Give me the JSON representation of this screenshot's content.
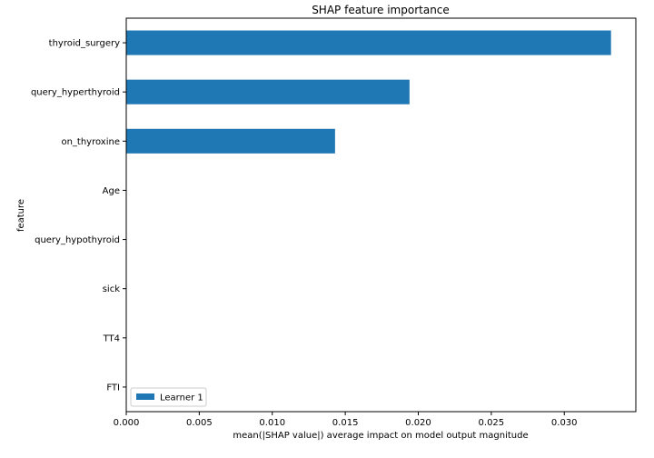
{
  "chart_data": {
    "type": "bar",
    "orientation": "horizontal",
    "title": "SHAP feature importance",
    "xlabel": "mean(|SHAP value|) average impact on model output magnitude",
    "ylabel": "feature",
    "categories": [
      "thyroid_surgery",
      "query_hyperthyroid",
      "on_thyroxine",
      "Age",
      "query_hypothyroid",
      "sick",
      "TT4",
      "FTI"
    ],
    "series": [
      {
        "name": "Learner 1",
        "values": [
          0.0332,
          0.0194,
          0.0143,
          0.0,
          0.0,
          0.0,
          0.0,
          0.0
        ]
      }
    ],
    "xlim": [
      0,
      0.0349
    ],
    "xticks": [
      "0.000",
      "0.005",
      "0.010",
      "0.015",
      "0.020",
      "0.025",
      "0.030"
    ],
    "xtick_values": [
      0,
      0.005,
      0.01,
      0.015,
      0.02,
      0.025,
      0.03
    ],
    "legend_position": "lower-left",
    "grid": false,
    "colors": {
      "bar": "#1f77b4",
      "axis": "#000000"
    }
  }
}
